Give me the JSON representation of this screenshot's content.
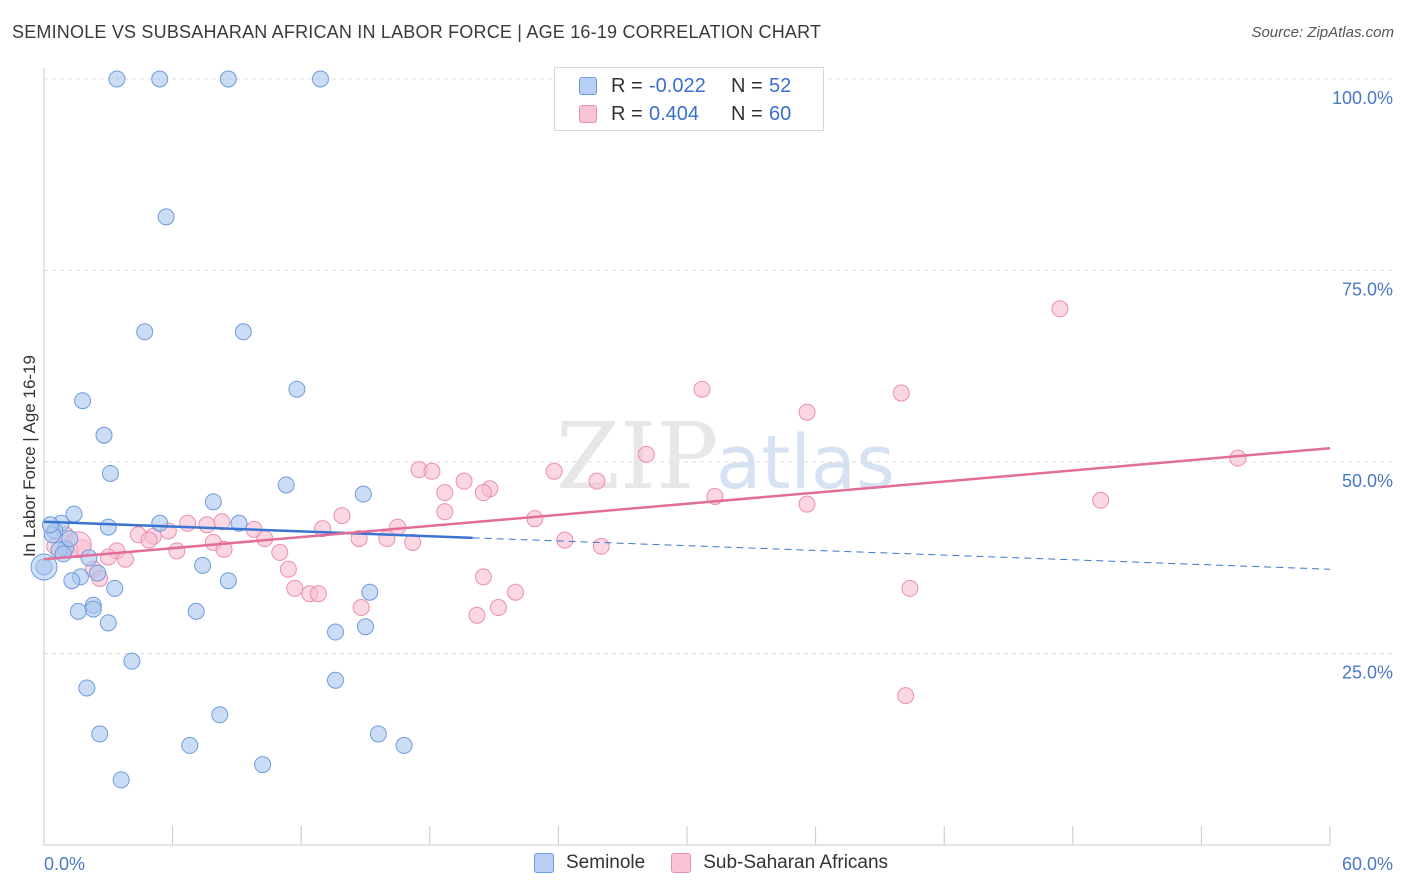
{
  "header": {
    "title": "SEMINOLE VS SUBSAHARAN AFRICAN IN LABOR FORCE | AGE 16-19 CORRELATION CHART",
    "source": "Source: ZipAtlas.com"
  },
  "watermark": {
    "zip": "ZIP",
    "atlas": "atlas"
  },
  "legend": {
    "rows": [
      {
        "r_label": "R =",
        "r_value": "-0.022",
        "n_label": "N =",
        "n_value": "52",
        "color": "#b8d0f4",
        "border": "#6a9ae0"
      },
      {
        "r_label": "R =",
        "r_value": "0.404",
        "n_label": "N =",
        "n_value": "60",
        "color": "#f9c4d4",
        "border": "#e890ac"
      }
    ]
  },
  "bottom_legend": {
    "items": [
      {
        "label": "Seminole"
      },
      {
        "label": "Sub-Saharan Africans"
      }
    ]
  },
  "chart_data": {
    "type": "scatter",
    "title": "SEMINOLE VS SUBSAHARAN AFRICAN IN LABOR FORCE | AGE 16-19 CORRELATION CHART",
    "ylabel": "In Labor Force | Age 16-19",
    "xlabel": "",
    "xlim": [
      0,
      60
    ],
    "ylim": [
      0,
      105
    ],
    "x_tick_labels": [
      "0.0%",
      "60.0%"
    ],
    "y_ticks": [
      25,
      50,
      75,
      100
    ],
    "y_tick_labels": [
      "25.0%",
      "50.0%",
      "75.0%",
      "100.0%"
    ],
    "grid": true,
    "legend_position": "top-center",
    "series": [
      {
        "name": "Seminole",
        "color": "#a9c6ef",
        "stroke": "#6f9bdc",
        "trend_color": "#3a74d0",
        "trend": {
          "x0": 0,
          "y0": 42.2,
          "x1": 20,
          "y1": 40.1,
          "dash_to_x": 60,
          "dash_to_y": 36
        },
        "points": [
          [
            3.4,
            100
          ],
          [
            5.4,
            100
          ],
          [
            8.6,
            100
          ],
          [
            12.9,
            100
          ],
          [
            5.7,
            82
          ],
          [
            4.7,
            67
          ],
          [
            9.3,
            67
          ],
          [
            11.8,
            59.5
          ],
          [
            1.8,
            58
          ],
          [
            2.8,
            53.5
          ],
          [
            3.1,
            48.5
          ],
          [
            11.3,
            47
          ],
          [
            14.9,
            45.8
          ],
          [
            7.9,
            44.8
          ],
          [
            1.4,
            43.2
          ],
          [
            0.8,
            42
          ],
          [
            5.4,
            42
          ],
          [
            9.1,
            42
          ],
          [
            3.0,
            41.5
          ],
          [
            0.5,
            41
          ],
          [
            0.4,
            40.5
          ],
          [
            1.0,
            38.7
          ],
          [
            2.1,
            37.5
          ],
          [
            0.0,
            36.3
          ],
          [
            7.4,
            36.5
          ],
          [
            2.5,
            35.5
          ],
          [
            1.7,
            35
          ],
          [
            1.3,
            34.5
          ],
          [
            8.6,
            34.5
          ],
          [
            3.3,
            33.5
          ],
          [
            15.2,
            33
          ],
          [
            2.3,
            31.3
          ],
          [
            2.3,
            30.8
          ],
          [
            1.6,
            30.5
          ],
          [
            7.1,
            30.5
          ],
          [
            3.0,
            29
          ],
          [
            15.0,
            28.5
          ],
          [
            13.6,
            27.8
          ],
          [
            4.1,
            24
          ],
          [
            13.6,
            21.5
          ],
          [
            2.0,
            20.5
          ],
          [
            8.2,
            17
          ],
          [
            2.6,
            14.5
          ],
          [
            6.8,
            13
          ],
          [
            15.6,
            14.5
          ],
          [
            16.8,
            13
          ],
          [
            10.2,
            10.5
          ],
          [
            3.6,
            8.5
          ],
          [
            0.7,
            38.5
          ],
          [
            0.9,
            38
          ],
          [
            1.2,
            40
          ],
          [
            0.3,
            41.8
          ]
        ],
        "big_point": [
          0.0,
          36.3
        ]
      },
      {
        "name": "Sub-Saharan Africans",
        "color": "#f7bdd0",
        "stroke": "#eb8faf",
        "trend_color": "#e16d98",
        "trend": {
          "x0": 0,
          "y0": 37.3,
          "x1": 60,
          "y1": 51.8
        },
        "points": [
          [
            47.4,
            70
          ],
          [
            30.7,
            59.5
          ],
          [
            40.0,
            59
          ],
          [
            35.6,
            56.5
          ],
          [
            28.1,
            51
          ],
          [
            55.7,
            50.5
          ],
          [
            17.5,
            49
          ],
          [
            18.1,
            48.8
          ],
          [
            23.8,
            48.8
          ],
          [
            25.8,
            47.5
          ],
          [
            19.6,
            47.5
          ],
          [
            20.8,
            46.5
          ],
          [
            20.5,
            46
          ],
          [
            18.7,
            46
          ],
          [
            31.3,
            45.5
          ],
          [
            49.3,
            45
          ],
          [
            35.6,
            44.5
          ],
          [
            18.7,
            43.5
          ],
          [
            13.9,
            43
          ],
          [
            22.9,
            42.6
          ],
          [
            16.5,
            41.5
          ],
          [
            13.0,
            41.3
          ],
          [
            8.3,
            42.2
          ],
          [
            6.7,
            42
          ],
          [
            7.6,
            41.8
          ],
          [
            9.8,
            41.2
          ],
          [
            5.8,
            41
          ],
          [
            4.4,
            40.5
          ],
          [
            5.1,
            40.3
          ],
          [
            10.3,
            40
          ],
          [
            14.7,
            40
          ],
          [
            16.0,
            40
          ],
          [
            4.9,
            39.8
          ],
          [
            7.9,
            39.5
          ],
          [
            8.4,
            38.6
          ],
          [
            17.2,
            39.5
          ],
          [
            24.3,
            39.8
          ],
          [
            26.0,
            39
          ],
          [
            1.8,
            38.8
          ],
          [
            3.4,
            38.4
          ],
          [
            6.2,
            38.4
          ],
          [
            11.0,
            38.2
          ],
          [
            3.0,
            37.6
          ],
          [
            3.8,
            37.3
          ],
          [
            11.4,
            36
          ],
          [
            1.2,
            38.5
          ],
          [
            2.3,
            36
          ],
          [
            20.5,
            35
          ],
          [
            11.7,
            33.5
          ],
          [
            14.8,
            31
          ],
          [
            22.0,
            33
          ],
          [
            12.4,
            32.8
          ],
          [
            12.8,
            32.8
          ],
          [
            21.2,
            31
          ],
          [
            40.4,
            33.5
          ],
          [
            20.2,
            30
          ],
          [
            40.2,
            19.5
          ],
          [
            2.6,
            34.8
          ],
          [
            0.5,
            39
          ],
          [
            1.0,
            40.5
          ]
        ],
        "big_point": [
          1.6,
          39.2
        ]
      }
    ]
  }
}
